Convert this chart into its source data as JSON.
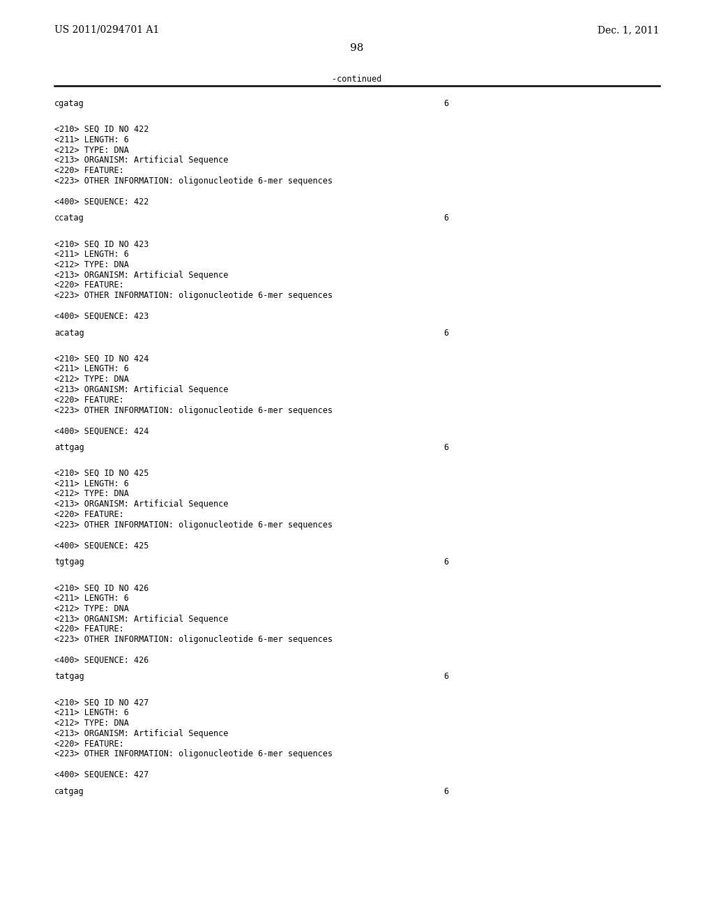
{
  "header_left": "US 2011/0294701 A1",
  "header_right": "Dec. 1, 2011",
  "page_number": "98",
  "continued_text": "-continued",
  "background_color": "#ffffff",
  "text_color": "#000000",
  "font_size_header": 10.0,
  "font_size_body": 8.5,
  "font_size_page": 11.0,
  "first_sequence": "cgatag",
  "first_length_val": "6",
  "sections": [
    {
      "seq_id": "422",
      "entries": [
        "<210> SEQ ID NO 422",
        "<211> LENGTH: 6",
        "<212> TYPE: DNA",
        "<213> ORGANISM: Artificial Sequence",
        "<220> FEATURE:",
        "<223> OTHER INFORMATION: oligonucleotide 6-mer sequences",
        "",
        "<400> SEQUENCE: 422"
      ],
      "next_sequence": "ccatag",
      "next_length_val": "6"
    },
    {
      "seq_id": "423",
      "entries": [
        "<210> SEQ ID NO 423",
        "<211> LENGTH: 6",
        "<212> TYPE: DNA",
        "<213> ORGANISM: Artificial Sequence",
        "<220> FEATURE:",
        "<223> OTHER INFORMATION: oligonucleotide 6-mer sequences",
        "",
        "<400> SEQUENCE: 423"
      ],
      "next_sequence": "acatag",
      "next_length_val": "6"
    },
    {
      "seq_id": "424",
      "entries": [
        "<210> SEQ ID NO 424",
        "<211> LENGTH: 6",
        "<212> TYPE: DNA",
        "<213> ORGANISM: Artificial Sequence",
        "<220> FEATURE:",
        "<223> OTHER INFORMATION: oligonucleotide 6-mer sequences",
        "",
        "<400> SEQUENCE: 424"
      ],
      "next_sequence": "attgag",
      "next_length_val": "6"
    },
    {
      "seq_id": "425",
      "entries": [
        "<210> SEQ ID NO 425",
        "<211> LENGTH: 6",
        "<212> TYPE: DNA",
        "<213> ORGANISM: Artificial Sequence",
        "<220> FEATURE:",
        "<223> OTHER INFORMATION: oligonucleotide 6-mer sequences",
        "",
        "<400> SEQUENCE: 425"
      ],
      "next_sequence": "tgtgag",
      "next_length_val": "6"
    },
    {
      "seq_id": "426",
      "entries": [
        "<210> SEQ ID NO 426",
        "<211> LENGTH: 6",
        "<212> TYPE: DNA",
        "<213> ORGANISM: Artificial Sequence",
        "<220> FEATURE:",
        "<223> OTHER INFORMATION: oligonucleotide 6-mer sequences",
        "",
        "<400> SEQUENCE: 426"
      ],
      "next_sequence": "tatgag",
      "next_length_val": "6"
    },
    {
      "seq_id": "427",
      "entries": [
        "<210> SEQ ID NO 427",
        "<211> LENGTH: 6",
        "<212> TYPE: DNA",
        "<213> ORGANISM: Artificial Sequence",
        "<220> FEATURE:",
        "<223> OTHER INFORMATION: oligonucleotide 6-mer sequences",
        "",
        "<400> SEQUENCE: 427"
      ],
      "next_sequence": "catgag",
      "next_length_val": "6"
    }
  ]
}
